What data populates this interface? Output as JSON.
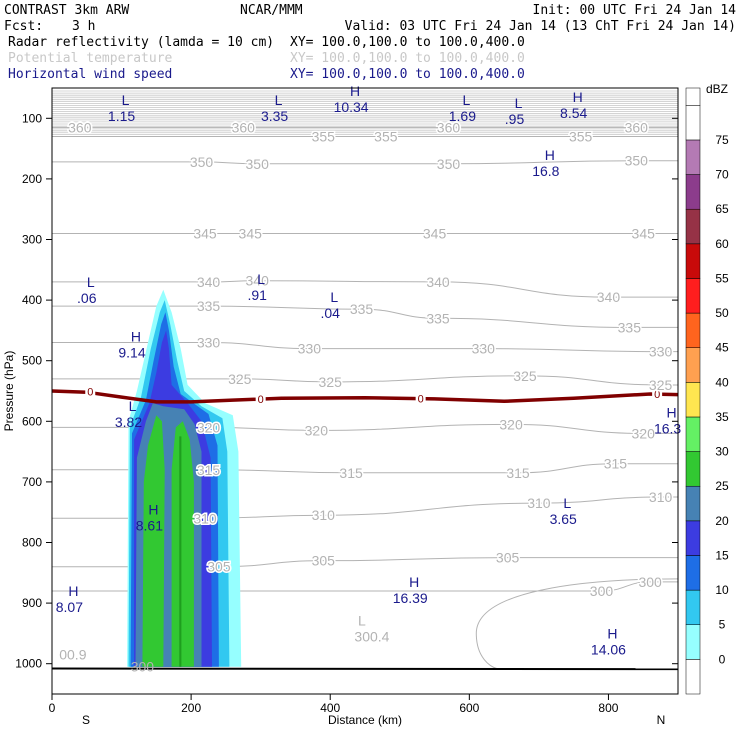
{
  "header": {
    "model": "CONTRAST  3km ARW",
    "org": "NCAR/MMM",
    "init": "Init: 00 UTC Fri 24 Jan 14",
    "fcst_label": "Fcst:",
    "fcst_value": "3 h",
    "valid": "Valid: 03 UTC Fri 24 Jan 14 (13 ChT Fri 24 Jan 14)",
    "fields": [
      {
        "name": "Radar reflectivity (lamda = 10 cm)",
        "xy": "XY= 100.0,100.0 to 100.0,400.0",
        "color": "#000000"
      },
      {
        "name": "Potential temperature",
        "xy": "XY= 100.0,100.0 to 100.0,400.0",
        "color": "#c8c8c8"
      },
      {
        "name": "Horizontal wind speed",
        "xy": "XY= 100.0,100.0 to 100.0,400.0",
        "color": "#1a1a8c"
      }
    ]
  },
  "chart_data": {
    "type": "heatmap",
    "title": "",
    "xlabel": "Distance (km)",
    "ylabel": "Pressure (hPa)",
    "x_range": [
      0,
      900
    ],
    "y_range": [
      50,
      1050
    ],
    "x_ticks": [
      0,
      200,
      400,
      600,
      800
    ],
    "y_ticks": [
      100,
      200,
      300,
      400,
      500,
      600,
      700,
      800,
      900,
      1000
    ],
    "x_end_labels": {
      "start": "S",
      "end": "N"
    },
    "colorbar": {
      "unit": "dBZ",
      "levels": [
        0,
        5,
        10,
        15,
        20,
        25,
        30,
        35,
        40,
        45,
        50,
        55,
        60,
        65,
        70,
        75
      ],
      "colors": [
        "#ffffff",
        "#96ffff",
        "#32c8f0",
        "#1e6ee6",
        "#3c3ce1",
        "#4682b4",
        "#32c832",
        "#64f064",
        "#ffe650",
        "#ffa050",
        "#ff641e",
        "#ff1e1e",
        "#c80a0a",
        "#963246",
        "#8c3c8c",
        "#b47ab4",
        "#ffffff"
      ]
    },
    "theta_contours": {
      "color": "#b3b3b3",
      "labels": [
        {
          "v": "360",
          "x": 40,
          "p": 115
        },
        {
          "v": "360",
          "x": 275,
          "p": 115
        },
        {
          "v": "360",
          "x": 570,
          "p": 115
        },
        {
          "v": "360",
          "x": 840,
          "p": 115
        },
        {
          "v": "355",
          "x": 390,
          "p": 130
        },
        {
          "v": "355",
          "x": 480,
          "p": 130
        },
        {
          "v": "355",
          "x": 760,
          "p": 130
        },
        {
          "v": "350",
          "x": 215,
          "p": 172
        },
        {
          "v": "350",
          "x": 295,
          "p": 175
        },
        {
          "v": "350",
          "x": 570,
          "p": 175
        },
        {
          "v": "350",
          "x": 840,
          "p": 170
        },
        {
          "v": "345",
          "x": 220,
          "p": 290
        },
        {
          "v": "345",
          "x": 285,
          "p": 290
        },
        {
          "v": "345",
          "x": 550,
          "p": 290
        },
        {
          "v": "345",
          "x": 850,
          "p": 290
        },
        {
          "v": "340",
          "x": 225,
          "p": 370
        },
        {
          "v": "340",
          "x": 295,
          "p": 368
        },
        {
          "v": "340",
          "x": 555,
          "p": 370
        },
        {
          "v": "340",
          "x": 800,
          "p": 395
        },
        {
          "v": "335",
          "x": 225,
          "p": 410
        },
        {
          "v": "335",
          "x": 445,
          "p": 415
        },
        {
          "v": "335",
          "x": 555,
          "p": 430
        },
        {
          "v": "335",
          "x": 830,
          "p": 445
        },
        {
          "v": "330",
          "x": 225,
          "p": 470
        },
        {
          "v": "330",
          "x": 370,
          "p": 480
        },
        {
          "v": "330",
          "x": 620,
          "p": 480
        },
        {
          "v": "330",
          "x": 875,
          "p": 485
        },
        {
          "v": "325",
          "x": 270,
          "p": 530
        },
        {
          "v": "325",
          "x": 400,
          "p": 535
        },
        {
          "v": "325",
          "x": 680,
          "p": 525
        },
        {
          "v": "325",
          "x": 875,
          "p": 540
        },
        {
          "v": "320",
          "x": 225,
          "p": 610
        },
        {
          "v": "320",
          "x": 380,
          "p": 615
        },
        {
          "v": "320",
          "x": 660,
          "p": 605
        },
        {
          "v": "320",
          "x": 850,
          "p": 620
        },
        {
          "v": "315",
          "x": 225,
          "p": 680
        },
        {
          "v": "315",
          "x": 430,
          "p": 685
        },
        {
          "v": "315",
          "x": 670,
          "p": 685
        },
        {
          "v": "315",
          "x": 810,
          "p": 670
        },
        {
          "v": "310",
          "x": 220,
          "p": 760
        },
        {
          "v": "310",
          "x": 390,
          "p": 755
        },
        {
          "v": "310",
          "x": 700,
          "p": 735
        },
        {
          "v": "310",
          "x": 875,
          "p": 725
        },
        {
          "v": "305",
          "x": 240,
          "p": 840
        },
        {
          "v": "305",
          "x": 390,
          "p": 830
        },
        {
          "v": "305",
          "x": 655,
          "p": 825
        },
        {
          "v": "300",
          "x": 790,
          "p": 880
        },
        {
          "v": "300",
          "x": 860,
          "p": 865
        }
      ]
    },
    "wind_extrema": [
      {
        "type": "L",
        "value": "1.15",
        "x": 100,
        "p": 85
      },
      {
        "type": "L",
        "value": "3.35",
        "x": 320,
        "p": 85
      },
      {
        "type": "H",
        "value": "10.34",
        "x": 430,
        "p": 70
      },
      {
        "type": "L",
        "value": "1.69",
        "x": 590,
        "p": 85
      },
      {
        "type": "L",
        "value": ".95",
        "x": 665,
        "p": 90
      },
      {
        "type": "H",
        "value": "8.54",
        "x": 750,
        "p": 80
      },
      {
        "type": "H",
        "value": "16.8",
        "x": 710,
        "p": 175
      },
      {
        "type": "L",
        "value": ".06",
        "x": 50,
        "p": 385
      },
      {
        "type": "L",
        "value": ".91",
        "x": 295,
        "p": 380
      },
      {
        "type": "L",
        "value": ".04",
        "x": 400,
        "p": 410
      },
      {
        "type": "H",
        "value": "9.14",
        "x": 115,
        "p": 475
      },
      {
        "type": "L",
        "value": "3.82",
        "x": 110,
        "p": 590
      },
      {
        "type": "H",
        "value": "16.3",
        "x": 885,
        "p": 600
      },
      {
        "type": "H",
        "value": "8.61",
        "x": 140,
        "p": 760
      },
      {
        "type": "L",
        "value": "3.65",
        "x": 735,
        "p": 750
      },
      {
        "type": "H",
        "value": "8.07",
        "x": 25,
        "p": 895
      },
      {
        "type": "H",
        "value": "16.39",
        "x": 515,
        "p": 880
      },
      {
        "type": "H",
        "value": "14.06",
        "x": 800,
        "p": 965
      }
    ],
    "theta_extrema": [
      {
        "type": "L",
        "value": "300.4",
        "x": 460,
        "p": 950
      },
      {
        "type": "",
        "value": "00.9",
        "x": 30,
        "p": 980
      },
      {
        "type": "",
        "value": "300",
        "x": 130,
        "p": 1000
      }
    ],
    "freezing_level": {
      "label": "0",
      "color": "#800000",
      "points": [
        [
          0,
          550
        ],
        [
          50,
          552
        ],
        [
          100,
          560
        ],
        [
          150,
          568
        ],
        [
          200,
          568
        ],
        [
          260,
          565
        ],
        [
          330,
          562
        ],
        [
          450,
          561
        ],
        [
          550,
          563
        ],
        [
          650,
          567
        ],
        [
          750,
          562
        ],
        [
          860,
          555
        ],
        [
          900,
          556
        ]
      ]
    },
    "surface_pressure": 1008,
    "reflectivity_cell": [
      {
        "dbz": 5,
        "color": "#96ffff",
        "points": [
          [
            108,
            1005
          ],
          [
            110,
            600
          ],
          [
            122,
            550
          ],
          [
            138,
            470
          ],
          [
            150,
            410
          ],
          [
            160,
            383
          ],
          [
            172,
            420
          ],
          [
            185,
            480
          ],
          [
            195,
            540
          ],
          [
            220,
            570
          ],
          [
            260,
            590
          ],
          [
            268,
            650
          ],
          [
            272,
            1005
          ]
        ]
      },
      {
        "dbz": 10,
        "color": "#32c8f0",
        "points": [
          [
            110,
            1005
          ],
          [
            112,
            610
          ],
          [
            128,
            560
          ],
          [
            142,
            480
          ],
          [
            155,
            420
          ],
          [
            162,
            400
          ],
          [
            170,
            440
          ],
          [
            180,
            500
          ],
          [
            190,
            550
          ],
          [
            215,
            575
          ],
          [
            245,
            595
          ],
          [
            252,
            650
          ],
          [
            255,
            1005
          ]
        ]
      },
      {
        "dbz": 15,
        "color": "#1e6ee6",
        "points": [
          [
            113,
            1005
          ],
          [
            115,
            620
          ],
          [
            135,
            565
          ],
          [
            146,
            500
          ],
          [
            157,
            440
          ],
          [
            163,
            420
          ],
          [
            168,
            450
          ],
          [
            175,
            510
          ],
          [
            185,
            555
          ],
          [
            225,
            588
          ],
          [
            238,
            640
          ],
          [
            240,
            1005
          ]
        ]
      },
      {
        "dbz": 20,
        "color": "#3c3ce1",
        "points": [
          [
            118,
            1005
          ],
          [
            118,
            630
          ],
          [
            140,
            570
          ],
          [
            150,
            520
          ],
          [
            158,
            470
          ],
          [
            164,
            450
          ],
          [
            168,
            480
          ],
          [
            172,
            540
          ],
          [
            195,
            570
          ],
          [
            215,
            600
          ],
          [
            228,
            660
          ],
          [
            230,
            1005
          ]
        ]
      },
      {
        "dbz": 25,
        "color": "#4682b4",
        "points": [
          [
            120,
            1005
          ],
          [
            122,
            660
          ],
          [
            135,
            600
          ],
          [
            145,
            570
          ],
          [
            160,
            575
          ],
          [
            190,
            580
          ],
          [
            205,
            605
          ],
          [
            215,
            650
          ],
          [
            215,
            1005
          ]
        ]
      },
      {
        "dbz": 30,
        "color": "#32c832",
        "points": [
          [
            130,
            1005
          ],
          [
            132,
            700
          ],
          [
            138,
            640
          ],
          [
            150,
            590
          ],
          [
            158,
            600
          ],
          [
            162,
            680
          ],
          [
            160,
            1005
          ]
        ]
      },
      {
        "dbz": 30,
        "color": "#32c832",
        "points": [
          [
            172,
            1005
          ],
          [
            172,
            680
          ],
          [
            178,
            610
          ],
          [
            188,
            600
          ],
          [
            198,
            630
          ],
          [
            204,
            700
          ],
          [
            204,
            1005
          ]
        ]
      }
    ],
    "reflectivity_core": {
      "dbz": 35,
      "color": "#1e9e1e",
      "points": [
        [
          183,
          625
        ],
        [
          186,
          625
        ],
        [
          186,
          1005
        ],
        [
          183,
          1005
        ]
      ]
    }
  }
}
